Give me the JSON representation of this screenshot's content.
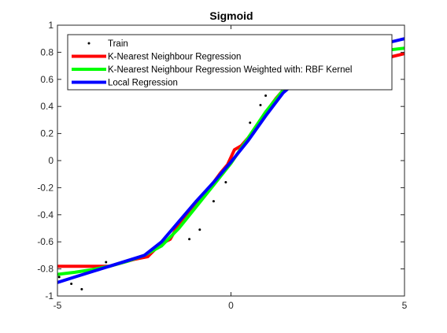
{
  "chart_data": {
    "type": "line",
    "title": "Sigmoid",
    "xlabel": "",
    "ylabel": "",
    "xlim": [
      -5,
      5
    ],
    "ylim": [
      -1,
      1
    ],
    "x_ticks": [
      -5,
      0,
      5
    ],
    "y_ticks": [
      -1,
      -0.8,
      -0.6,
      -0.4,
      -0.2,
      0,
      0.2,
      0.4,
      0.6,
      0.8,
      1
    ],
    "grid": false,
    "legend_position": "top",
    "series": [
      {
        "name": "Train",
        "style": "markers",
        "color": "#000000",
        "x": [
          -4.95,
          -4.6,
          -4.3,
          -3.6,
          -1.2,
          -0.9,
          -0.5,
          -0.15,
          0.55,
          0.85,
          1.0,
          1.3
        ],
        "y": [
          -0.86,
          -0.91,
          -0.95,
          -0.75,
          -0.58,
          -0.51,
          -0.3,
          -0.16,
          0.28,
          0.41,
          0.48,
          0.55
        ]
      },
      {
        "name": "K-Nearest Neighbour Regression",
        "style": "line",
        "color": "#ff0000",
        "x": [
          -5,
          -4.3,
          -3.5,
          -2.8,
          -2.4,
          -2.05,
          -1.75,
          -1.5,
          -1.3,
          -1.1,
          -0.9,
          -0.7,
          -0.5,
          -0.3,
          -0.1,
          0.1,
          0.3,
          0.5,
          0.7,
          0.9,
          1.1,
          1.3,
          1.5,
          1.7,
          1.9,
          5
        ],
        "y": [
          -0.78,
          -0.78,
          -0.78,
          -0.73,
          -0.71,
          -0.62,
          -0.58,
          -0.47,
          -0.4,
          -0.35,
          -0.28,
          -0.22,
          -0.16,
          -0.09,
          -0.03,
          0.08,
          0.11,
          0.17,
          0.24,
          0.31,
          0.39,
          0.46,
          0.52,
          0.56,
          0.6,
          0.79
        ]
      },
      {
        "name": "K-Nearest Neighbour Regression Weighted with: RBF Kernel",
        "style": "line",
        "color": "#00ff00",
        "x": [
          -5,
          -4.5,
          -4,
          -3.5,
          -3,
          -2.5,
          -2,
          -1.5,
          -1,
          -0.5,
          0,
          0.5,
          1,
          1.5,
          2,
          2.5,
          3,
          3.5,
          4,
          4.5,
          5
        ],
        "y": [
          -0.84,
          -0.825,
          -0.805,
          -0.78,
          -0.745,
          -0.7,
          -0.63,
          -0.5,
          -0.34,
          -0.18,
          -0.02,
          0.17,
          0.36,
          0.52,
          0.63,
          0.7,
          0.75,
          0.78,
          0.8,
          0.815,
          0.83
        ]
      },
      {
        "name": "Local Regression",
        "style": "line",
        "color": "#0000ff",
        "x": [
          -5,
          -4.5,
          -4,
          -3.5,
          -3,
          -2.5,
          -2,
          -1.5,
          -1,
          -0.5,
          0,
          0.5,
          1,
          1.5,
          2,
          2.5,
          3,
          3.5,
          4,
          4.5,
          5
        ],
        "y": [
          -0.9,
          -0.86,
          -0.82,
          -0.78,
          -0.74,
          -0.7,
          -0.6,
          -0.45,
          -0.3,
          -0.16,
          -0.01,
          0.15,
          0.33,
          0.5,
          0.61,
          0.68,
          0.74,
          0.79,
          0.83,
          0.87,
          0.9
        ]
      }
    ]
  }
}
